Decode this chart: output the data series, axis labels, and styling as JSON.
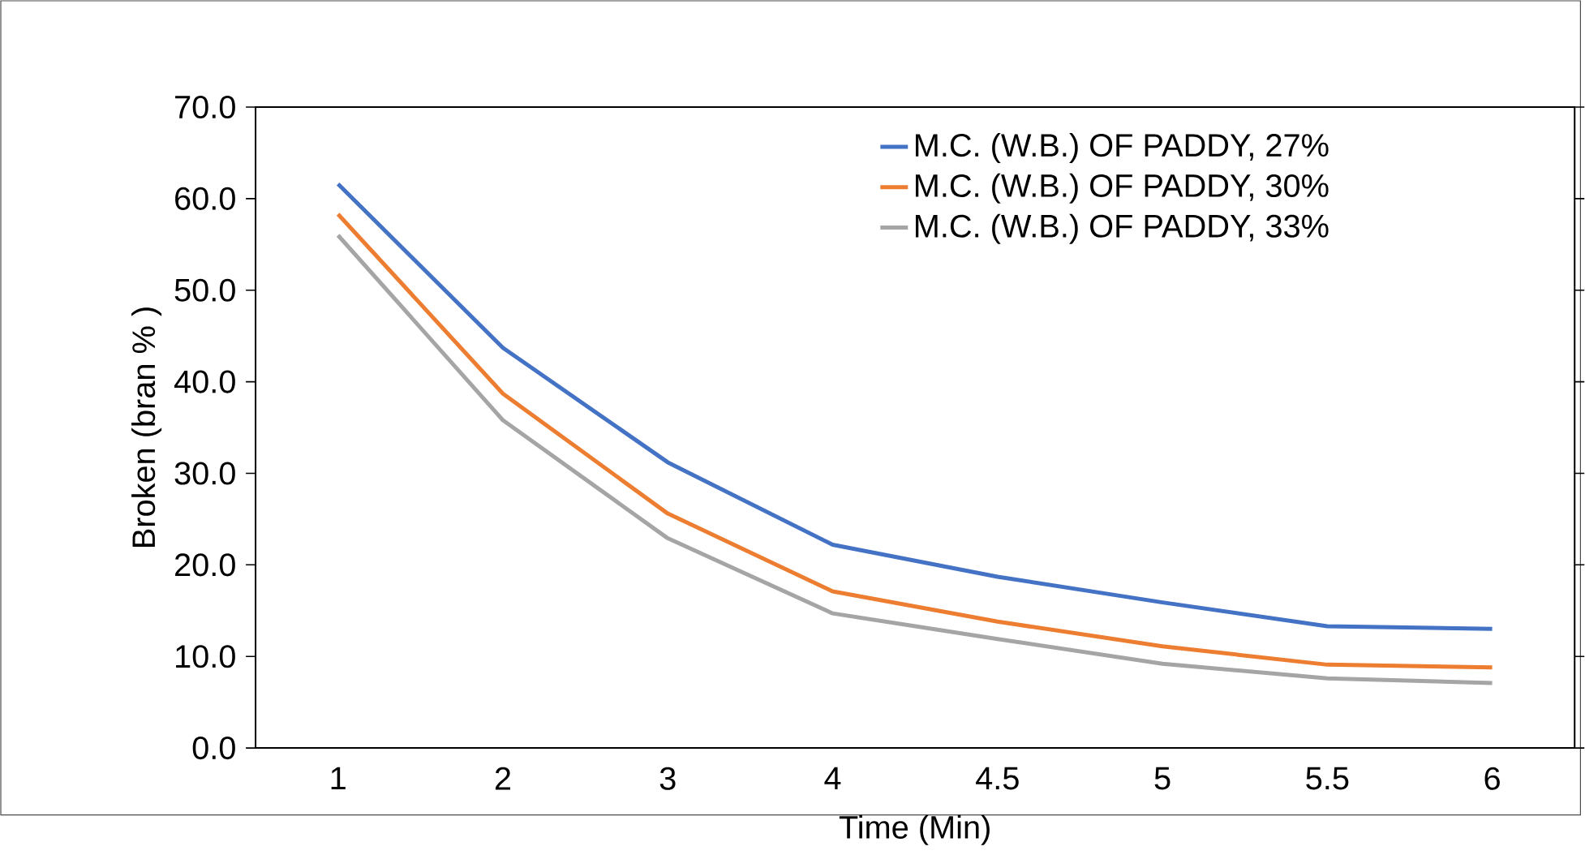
{
  "chart_data": {
    "type": "line",
    "xlabel": "Time (Min)",
    "ylabel": "Broken (bran % )",
    "categories": [
      "1",
      "2",
      "3",
      "4",
      "4.5",
      "5",
      "5.5",
      "6"
    ],
    "series": [
      {
        "name": "M.C. (W.B.) OF PADDY, 27%",
        "color": "#4472c4",
        "values": [
          61.6,
          43.7,
          31.2,
          22.2,
          18.7,
          15.9,
          13.3,
          13.0
        ]
      },
      {
        "name": "M.C. (W.B.) OF PADDY, 30%",
        "color": "#ed7d31",
        "values": [
          58.3,
          38.7,
          25.6,
          17.1,
          13.8,
          11.1,
          9.1,
          8.8
        ]
      },
      {
        "name": "M.C. (W.B.) OF PADDY, 33%",
        "color": "#a5a5a5",
        "values": [
          56.0,
          35.8,
          22.9,
          14.7,
          11.9,
          9.2,
          7.6,
          7.1
        ]
      }
    ],
    "ylim": [
      0,
      70
    ],
    "yticks": [
      {
        "value": 0,
        "label": "0.0"
      },
      {
        "value": 10,
        "label": "10.0"
      },
      {
        "value": 20,
        "label": "20.0"
      },
      {
        "value": 30,
        "label": "30.0"
      },
      {
        "value": 40,
        "label": "40.0"
      },
      {
        "value": 50,
        "label": "50.0"
      },
      {
        "value": 60,
        "label": "60.0"
      },
      {
        "value": 70,
        "label": "70.0"
      }
    ],
    "legend": "top right",
    "marker": "none",
    "line_style": "solid"
  }
}
